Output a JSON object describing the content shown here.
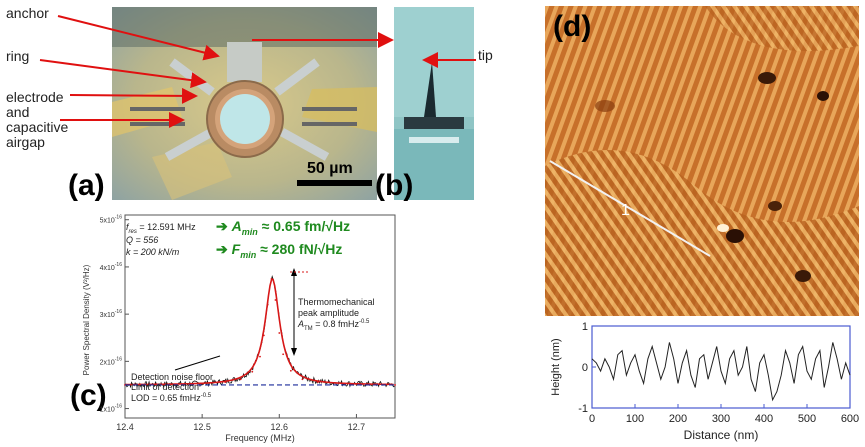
{
  "panel_a": {
    "letter": "(a)",
    "labels": [
      "anchor",
      "ring",
      "electrode",
      "and",
      "capacitive",
      "airgap"
    ],
    "scalebar": "50 µm"
  },
  "panel_b": {
    "letter": "(b)",
    "label": "tip"
  },
  "panel_c": {
    "letter": "(c)",
    "params": {
      "fres": "f",
      "fres_sub": "res",
      "fres_val": " = 12.591 MHz",
      "q": "Q = 556",
      "k": "k = 200 kN/m"
    },
    "amin": {
      "arrow": "➔ ",
      "sym": "A",
      "sub": "min",
      "rest": " ≈ 0.65 fm/√Hz"
    },
    "fmin": {
      "arrow": "➔ ",
      "sym": "F",
      "sub": "min",
      "rest": " ≈ 280 fN/√Hz"
    },
    "thermo": [
      "Thermomechanical",
      "peak amplitude"
    ],
    "ath": {
      "sym": "A",
      "sub": "TM",
      "rest": " = 0.8 fmHz",
      "exp": "-0.5"
    },
    "noise": [
      "Detection noise floor",
      "Limit of detection",
      "LOD = 0.65 fmHz"
    ],
    "noise_exp": "-0.5",
    "chart": {
      "type": "line",
      "xlabel": "Frequency (MHz)",
      "ylabel": "Power Spectral Density (V²/Hz)",
      "xlim": [
        12.4,
        12.75
      ],
      "xticks": [
        "12.4",
        "12.5",
        "12.6",
        "12.7"
      ],
      "yticks": [
        "1x10",
        "2x10",
        "3x10",
        "4x10",
        "5x10"
      ],
      "ytick_exp": "-16",
      "colors": {
        "data": "#111111",
        "fit": "#d81818",
        "floor": "#1a2a9a",
        "green": "#1f8a1f"
      }
    }
  },
  "panel_d": {
    "letter": "(d)",
    "line_label": "1",
    "chart": {
      "type": "line",
      "xlabel": "Distance (nm)",
      "ylabel": "Height (nm)",
      "xticks": [
        "0",
        "100",
        "200",
        "300",
        "400",
        "500",
        "600"
      ],
      "yticks": [
        "1",
        "0",
        "-1"
      ],
      "xlim": [
        0,
        600
      ],
      "ylim": [
        -1,
        1
      ],
      "profile_x": [
        0,
        10,
        20,
        30,
        40,
        50,
        60,
        70,
        80,
        90,
        100,
        110,
        120,
        130,
        140,
        150,
        160,
        170,
        180,
        190,
        200,
        210,
        220,
        230,
        240,
        250,
        260,
        270,
        280,
        290,
        300,
        310,
        320,
        330,
        340,
        350,
        360,
        370,
        380,
        390,
        400,
        410,
        420,
        430,
        440,
        450,
        460,
        470,
        480,
        490,
        500,
        510,
        520,
        530,
        540,
        550,
        560,
        570,
        580,
        590,
        600
      ],
      "profile_y": [
        0.2,
        0.1,
        -0.1,
        0.2,
        0.0,
        -0.3,
        0.3,
        0.4,
        -0.2,
        0.1,
        0.3,
        -0.1,
        -0.4,
        0.2,
        0.5,
        0.1,
        -0.3,
        0.0,
        0.6,
        0.2,
        -0.4,
        0.1,
        0.4,
        -0.2,
        -0.5,
        0.2,
        0.3,
        -0.3,
        0.1,
        0.5,
        -0.1,
        -0.4,
        0.2,
        0.4,
        -0.2,
        0.0,
        0.5,
        -0.3,
        -0.6,
        0.1,
        0.3,
        -0.2,
        -0.8,
        -0.6,
        -0.2,
        0.4,
        0.1,
        -0.4,
        0.3,
        0.5,
        -0.1,
        -0.3,
        0.2,
        0.4,
        -0.5,
        0.0,
        0.6,
        0.2,
        -0.3,
        0.1,
        -0.2
      ]
    }
  },
  "chart_data": {
    "type": "line",
    "xlabel": "Frequency (MHz)",
    "ylabel": "Power Spectral Density (V²/Hz)",
    "xlim": [
      12.4,
      12.75
    ],
    "ylim": [
      1e-16,
      5e-16
    ],
    "series": [
      {
        "x": [
          12.4,
          12.45,
          12.5,
          12.53,
          12.55,
          12.565,
          12.575,
          12.58,
          12.585,
          12.59,
          12.595,
          12.6,
          12.605,
          12.615,
          12.63,
          12.65,
          12.7,
          12.75
        ],
        "values": [
          1.5e-16,
          1.51e-16,
          1.53e-16,
          1.56e-16,
          1.62e-16,
          1.78e-16,
          2.1e-16,
          2.55e-16,
          3.2e-16,
          3.75e-16,
          3.3e-16,
          2.6e-16,
          2.15e-16,
          1.8e-16,
          1.62e-16,
          1.56e-16,
          1.52e-16,
          1.5e-16
        ]
      }
    ]
  }
}
